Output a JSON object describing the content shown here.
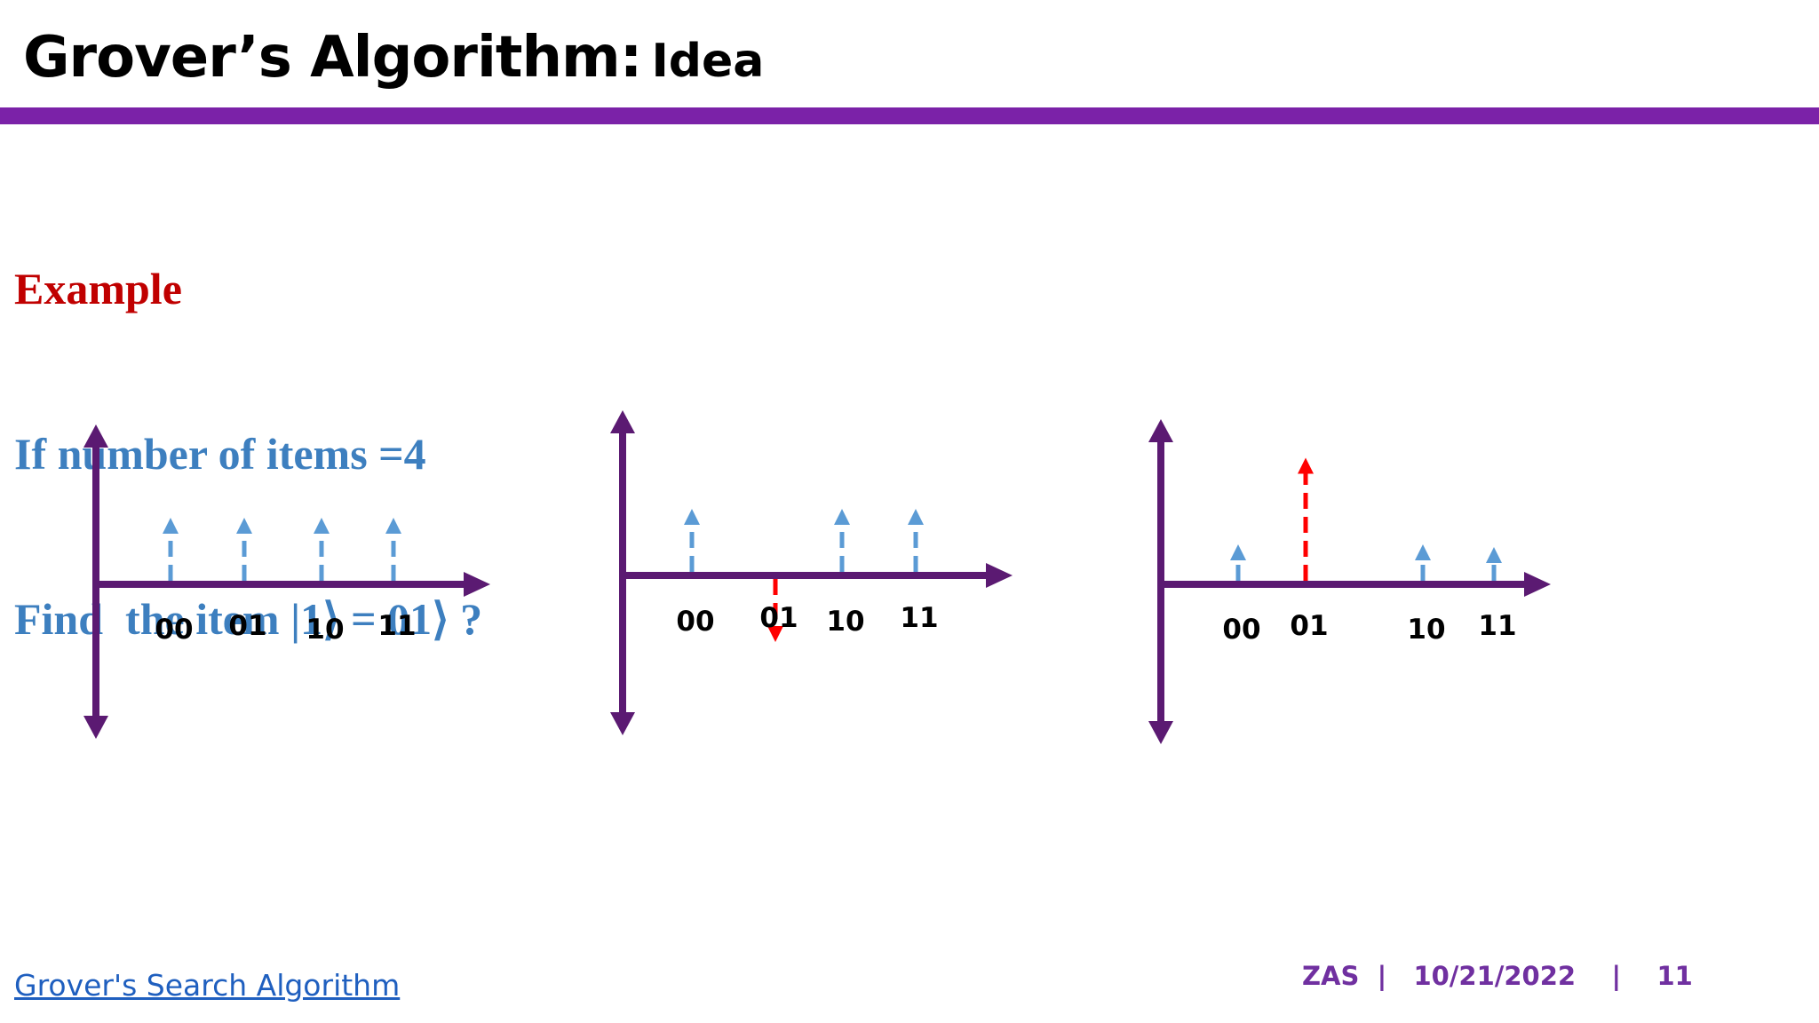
{
  "slide": {
    "title": "Grover’s Algorithm:",
    "subtitle": "Idea"
  },
  "example": {
    "heading": "Example",
    "line1": "If number of items =4",
    "line2": "Find  the item |1⟩ = 01⟩ ?"
  },
  "diagrams": [
    {
      "name": "initial-state",
      "bars": [
        {
          "label": "00",
          "amplitude": 0.5,
          "color": "#5b9bd5"
        },
        {
          "label": "01",
          "amplitude": 0.5,
          "color": "#5b9bd5"
        },
        {
          "label": "10",
          "amplitude": 0.5,
          "color": "#5b9bd5"
        },
        {
          "label": "11",
          "amplitude": 0.5,
          "color": "#5b9bd5"
        }
      ]
    },
    {
      "name": "oracle-phase-flip",
      "bars": [
        {
          "label": "00",
          "amplitude": 0.5,
          "color": "#5b9bd5"
        },
        {
          "label": "01",
          "amplitude": -0.5,
          "color": "#ff0000"
        },
        {
          "label": "10",
          "amplitude": 0.5,
          "color": "#5b9bd5"
        },
        {
          "label": "11",
          "amplitude": 0.5,
          "color": "#5b9bd5"
        }
      ]
    },
    {
      "name": "amplitude-amplification",
      "bars": [
        {
          "label": "00",
          "amplitude": 0.3,
          "color": "#5b9bd5"
        },
        {
          "label": "01",
          "amplitude": 0.95,
          "color": "#ff0000"
        },
        {
          "label": "10",
          "amplitude": 0.3,
          "color": "#5b9bd5"
        },
        {
          "label": "11",
          "amplitude": 0.28,
          "color": "#5b9bd5"
        }
      ]
    }
  ],
  "colors": {
    "axis": "#5b1a72",
    "accent_bar": "#7b22a8",
    "heading": "#c00000",
    "text_blue": "#3d7fbf",
    "footer": "#7030a0",
    "link": "#1f5fbf"
  },
  "footer": {
    "link_text": "Grover's Search Algorithm",
    "author": "ZAS",
    "separator": "|",
    "date": "10/21/2022",
    "page": "11"
  }
}
